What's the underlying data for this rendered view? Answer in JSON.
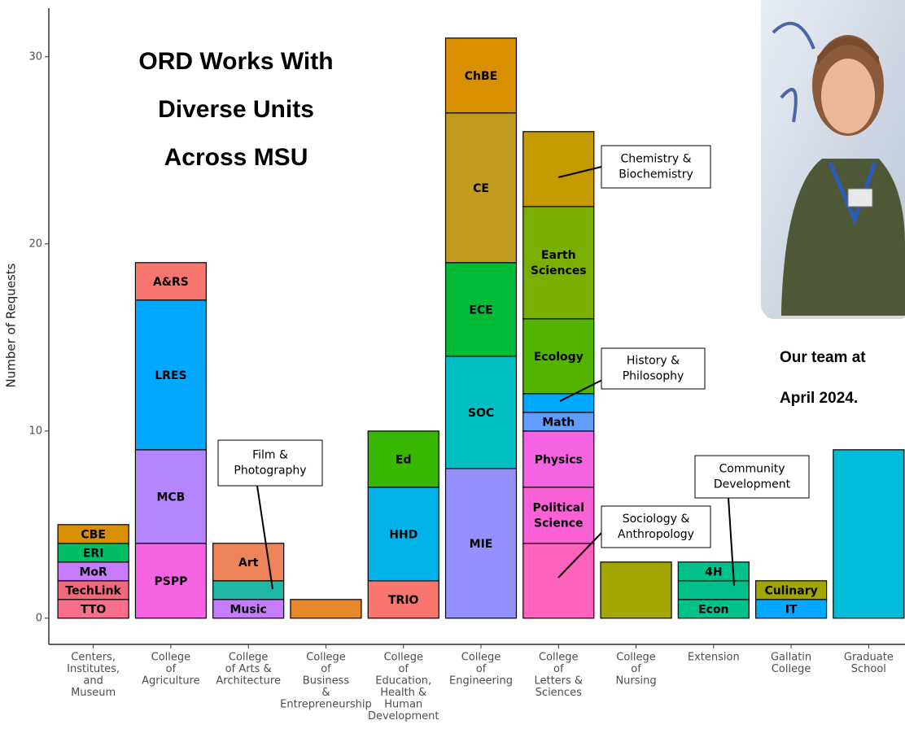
{
  "chart_data": {
    "type": "stacked_bar",
    "title": [
      "ORD Works With",
      "Diverse Units",
      "Across MSU"
    ],
    "y_label": "Number of Requests",
    "categories": [
      [
        "Centers,",
        "Institutes,",
        "and",
        "Museum"
      ],
      [
        "College",
        "of",
        "Agriculture"
      ],
      [
        "College",
        "of Arts &",
        "Architecture"
      ],
      [
        "College",
        "of",
        "Business",
        "&",
        "Entrepreneurship"
      ],
      [
        "College",
        "of",
        "Education,",
        "Health &",
        "Human",
        "Development"
      ],
      [
        "College",
        "of",
        "Engineering"
      ],
      [
        "College",
        "of",
        "Letters &",
        "Sciences"
      ],
      [
        "College",
        "of",
        "Nursing"
      ],
      [
        "Extension"
      ],
      [
        "Gallatin",
        "College"
      ],
      [
        "Graduate",
        "School"
      ]
    ],
    "stacks": [
      [
        {
          "label": "TTO",
          "value": 1,
          "color": "#f9708a"
        },
        {
          "label": "TechLink",
          "value": 1,
          "color": "#f4687c"
        },
        {
          "label": "MoR",
          "value": 1,
          "color": "#c77cff"
        },
        {
          "label": "ERI",
          "value": 1,
          "color": "#00be67"
        },
        {
          "label": "CBE",
          "value": 1,
          "color": "#d89000"
        }
      ],
      [
        {
          "label": "PSPP",
          "value": 4,
          "color": "#f564e3"
        },
        {
          "label": "MCB",
          "value": 5,
          "color": "#b385ff"
        },
        {
          "label": "LRES",
          "value": 8,
          "color": "#00a9ff"
        },
        {
          "label": "A&RS",
          "value": 2,
          "color": "#f8766d"
        }
      ],
      [
        {
          "label": "Music",
          "value": 1,
          "color": "#c77cff"
        },
        {
          "label": null,
          "value": 1,
          "color": "#1fb8a8"
        },
        {
          "label": "Art",
          "value": 2,
          "color": "#ee8459"
        }
      ],
      [
        {
          "label": null,
          "value": 1,
          "color": "#e8862a"
        }
      ],
      [
        {
          "label": "TRIO",
          "value": 2,
          "color": "#f8766d"
        },
        {
          "label": "HHD",
          "value": 5,
          "color": "#00b2e8"
        },
        {
          "label": "Ed",
          "value": 3,
          "color": "#39b600"
        }
      ],
      [
        {
          "label": "MIE",
          "value": 8,
          "color": "#9590ff"
        },
        {
          "label": "SOC",
          "value": 6,
          "color": "#00bfc4"
        },
        {
          "label": "ECE",
          "value": 5,
          "color": "#00ba38"
        },
        {
          "label": "CE",
          "value": 8,
          "color": "#c09b20"
        },
        {
          "label": "ChBE",
          "value": 4,
          "color": "#d89000"
        }
      ],
      [
        {
          "label": null,
          "value": 4,
          "color": "#ff62bc"
        },
        {
          "label": "Political Science",
          "value": 3,
          "color": "#fb61d7"
        },
        {
          "label": "Physics",
          "value": 3,
          "color": "#f564e3"
        },
        {
          "label": "Math",
          "value": 1,
          "color": "#619cff"
        },
        {
          "label": null,
          "value": 1,
          "color": "#00a9ff"
        },
        {
          "label": "Ecology",
          "value": 4,
          "color": "#53b400"
        },
        {
          "label": "Earth Sciences",
          "value": 6,
          "color": "#7cae00"
        },
        {
          "label": null,
          "value": 4,
          "color": "#c49a00"
        }
      ],
      [
        {
          "label": null,
          "value": 3,
          "color": "#a3a500"
        }
      ],
      [
        {
          "label": "Econ",
          "value": 1,
          "color": "#00c08b"
        },
        {
          "label": null,
          "value": 1,
          "color": "#00c08b"
        },
        {
          "label": "4H",
          "value": 1,
          "color": "#00c08b"
        }
      ],
      [
        {
          "label": "IT",
          "value": 1,
          "color": "#00a9ff"
        },
        {
          "label": "Culinary",
          "value": 1,
          "color": "#a3a500"
        }
      ],
      [
        {
          "label": null,
          "value": 9,
          "color": "#00bcd8"
        }
      ]
    ],
    "ylim": [
      -1.4,
      32.6
    ],
    "yticks": [
      0,
      10,
      20,
      30
    ],
    "annotations": [
      {
        "lines": [
          "Film &",
          "Photography"
        ]
      },
      {
        "lines": [
          "Chemistry &",
          "Biochemistry"
        ]
      },
      {
        "lines": [
          "History &",
          "Philosophy"
        ]
      },
      {
        "lines": [
          "Sociology &",
          "Anthropology"
        ]
      },
      {
        "lines": [
          "Community",
          "Development"
        ]
      }
    ]
  },
  "caption": [
    "Our team at",
    "April 2024."
  ]
}
